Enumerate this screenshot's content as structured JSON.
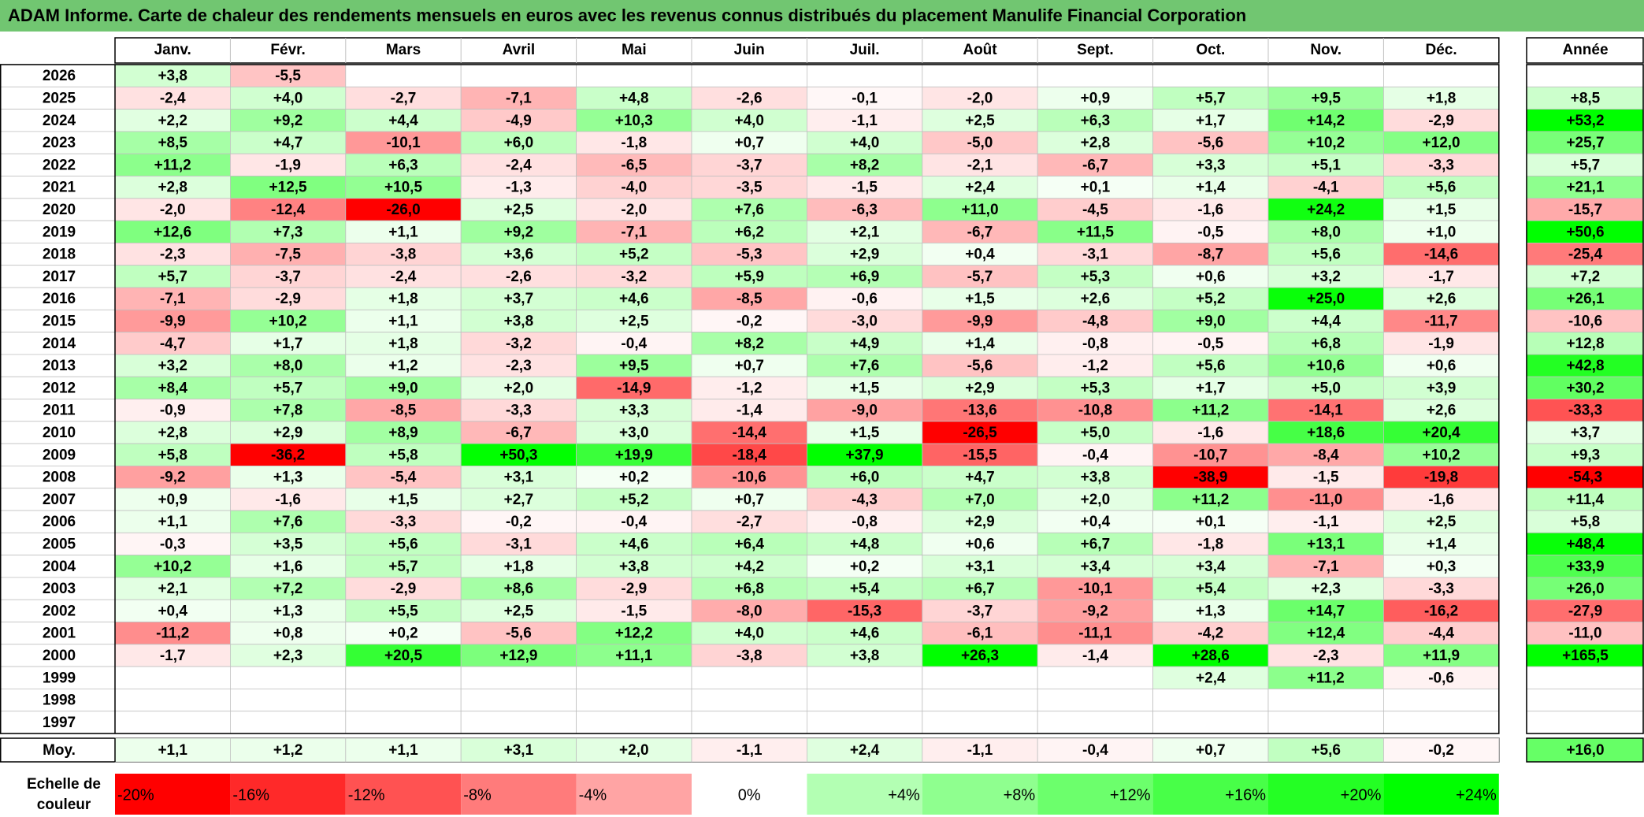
{
  "title": "ADAM Informe. Carte de chaleur des rendements mensuels en euros avec les revenus connus distribués du placement Manulife Financial Corporation",
  "chart_data": {
    "type": "heatmap",
    "months": [
      "Janv.",
      "Févr.",
      "Mars",
      "Avril",
      "Mai",
      "Juin",
      "Juil.",
      "Août",
      "Sept.",
      "Oct.",
      "Nov.",
      "Déc."
    ],
    "year_header": "Année",
    "years": [
      "2026",
      "2025",
      "2024",
      "2023",
      "2022",
      "2021",
      "2020",
      "2019",
      "2018",
      "2017",
      "2016",
      "2015",
      "2014",
      "2013",
      "2012",
      "2011",
      "2010",
      "2009",
      "2008",
      "2007",
      "2006",
      "2005",
      "2004",
      "2003",
      "2002",
      "2001",
      "2000",
      "1999",
      "1998",
      "1997"
    ],
    "values": [
      [
        "+3,8",
        "-5,5",
        "",
        "",
        "",
        "",
        "",
        "",
        "",
        "",
        "",
        ""
      ],
      [
        "-2,4",
        "+4,0",
        "-2,7",
        "-7,1",
        "+4,8",
        "-2,6",
        "-0,1",
        "-2,0",
        "+0,9",
        "+5,7",
        "+9,5",
        "+1,8"
      ],
      [
        "+2,2",
        "+9,2",
        "+4,4",
        "-4,9",
        "+10,3",
        "+4,0",
        "-1,1",
        "+2,5",
        "+6,3",
        "+1,7",
        "+14,2",
        "-2,9"
      ],
      [
        "+8,5",
        "+4,7",
        "-10,1",
        "+6,0",
        "-1,8",
        "+0,7",
        "+4,0",
        "-5,0",
        "+2,8",
        "-5,6",
        "+10,2",
        "+12,0"
      ],
      [
        "+11,2",
        "-1,9",
        "+6,3",
        "-2,4",
        "-6,5",
        "-3,7",
        "+8,2",
        "-2,1",
        "-6,7",
        "+3,3",
        "+5,1",
        "-3,3"
      ],
      [
        "+2,8",
        "+12,5",
        "+10,5",
        "-1,3",
        "-4,0",
        "-3,5",
        "-1,5",
        "+2,4",
        "+0,1",
        "+1,4",
        "-4,1",
        "+5,6"
      ],
      [
        "-2,0",
        "-12,4",
        "-26,0",
        "+2,5",
        "-2,0",
        "+7,6",
        "-6,3",
        "+11,0",
        "-4,5",
        "-1,6",
        "+24,2",
        "+1,5"
      ],
      [
        "+12,6",
        "+7,3",
        "+1,1",
        "+9,2",
        "-7,1",
        "+6,2",
        "+2,1",
        "-6,7",
        "+11,5",
        "-0,5",
        "+8,0",
        "+1,0"
      ],
      [
        "-2,3",
        "-7,5",
        "-3,8",
        "+3,6",
        "+5,2",
        "-5,3",
        "+2,9",
        "+0,4",
        "-3,1",
        "-8,7",
        "+5,6",
        "-14,6"
      ],
      [
        "+5,7",
        "-3,7",
        "-2,4",
        "-2,6",
        "-3,2",
        "+5,9",
        "+6,9",
        "-5,7",
        "+5,3",
        "+0,6",
        "+3,2",
        "-1,7"
      ],
      [
        "-7,1",
        "-2,9",
        "+1,8",
        "+3,7",
        "+4,6",
        "-8,5",
        "-0,6",
        "+1,5",
        "+2,6",
        "+5,2",
        "+25,0",
        "+2,6"
      ],
      [
        "-9,9",
        "+10,2",
        "+1,1",
        "+3,8",
        "+2,5",
        "-0,2",
        "-3,0",
        "-9,9",
        "-4,8",
        "+9,0",
        "+4,4",
        "-11,7"
      ],
      [
        "-4,7",
        "+1,7",
        "+1,8",
        "-3,2",
        "-0,4",
        "+8,2",
        "+4,9",
        "+1,4",
        "-0,8",
        "-0,5",
        "+6,8",
        "-1,9"
      ],
      [
        "+3,2",
        "+8,0",
        "+1,2",
        "-2,3",
        "+9,5",
        "+0,7",
        "+7,6",
        "-5,6",
        "-1,2",
        "+5,6",
        "+10,6",
        "+0,6"
      ],
      [
        "+8,4",
        "+5,7",
        "+9,0",
        "+2,0",
        "-14,9",
        "-1,2",
        "+1,5",
        "+2,9",
        "+5,3",
        "+1,7",
        "+5,0",
        "+3,9"
      ],
      [
        "-0,9",
        "+7,8",
        "-8,5",
        "-3,3",
        "+3,3",
        "-1,4",
        "-9,0",
        "-13,6",
        "-10,8",
        "+11,2",
        "-14,1",
        "+2,6"
      ],
      [
        "+2,8",
        "+2,9",
        "+8,9",
        "-6,7",
        "+3,0",
        "-14,4",
        "+1,5",
        "-26,5",
        "+5,0",
        "-1,6",
        "+18,6",
        "+20,4"
      ],
      [
        "+5,8",
        "-36,2",
        "+5,8",
        "+50,3",
        "+19,9",
        "-18,4",
        "+37,9",
        "-15,5",
        "-0,4",
        "-10,7",
        "-8,4",
        "+10,2"
      ],
      [
        "-9,2",
        "+1,3",
        "-5,4",
        "+3,1",
        "+0,2",
        "-10,6",
        "+6,0",
        "+4,7",
        "+3,8",
        "-38,9",
        "-1,5",
        "-19,8"
      ],
      [
        "+0,9",
        "-1,6",
        "+1,5",
        "+2,7",
        "+5,2",
        "+0,7",
        "-4,3",
        "+7,0",
        "+2,0",
        "+11,2",
        "-11,0",
        "-1,6"
      ],
      [
        "+1,1",
        "+7,6",
        "-3,3",
        "-0,2",
        "-0,4",
        "-2,7",
        "-0,8",
        "+2,9",
        "+0,4",
        "+0,1",
        "-1,1",
        "+2,5"
      ],
      [
        "-0,3",
        "+3,5",
        "+5,6",
        "-3,1",
        "+4,6",
        "+6,4",
        "+4,8",
        "+0,6",
        "+6,7",
        "-1,8",
        "+13,1",
        "+1,4"
      ],
      [
        "+10,2",
        "+1,6",
        "+5,7",
        "+1,8",
        "+3,8",
        "+4,2",
        "+0,2",
        "+3,1",
        "+3,4",
        "+3,4",
        "-7,1",
        "+0,3"
      ],
      [
        "+2,1",
        "+7,2",
        "-2,9",
        "+8,6",
        "-2,9",
        "+6,8",
        "+5,4",
        "+6,7",
        "-10,1",
        "+5,4",
        "+2,3",
        "-3,3"
      ],
      [
        "+0,4",
        "+1,3",
        "+5,5",
        "+2,5",
        "-1,5",
        "-8,0",
        "-15,3",
        "-3,7",
        "-9,2",
        "+1,3",
        "+14,7",
        "-16,2"
      ],
      [
        "-11,2",
        "+0,8",
        "+0,2",
        "-5,6",
        "+12,2",
        "+4,0",
        "+4,6",
        "-6,1",
        "-11,1",
        "-4,2",
        "+12,4",
        "-4,4"
      ],
      [
        "-1,7",
        "+2,3",
        "+20,5",
        "+12,9",
        "+11,1",
        "-3,8",
        "+3,8",
        "+26,3",
        "-1,4",
        "+28,6",
        "-2,3",
        "+11,9"
      ],
      [
        "",
        "",
        "",
        "",
        "",
        "",
        "",
        "",
        "",
        "+2,4",
        "+11,2",
        "-0,6"
      ],
      [
        "",
        "",
        "",
        "",
        "",
        "",
        "",
        "",
        "",
        "",
        "",
        ""
      ],
      [
        "",
        "",
        "",
        "",
        "",
        "",
        "",
        "",
        "",
        "",
        "",
        ""
      ]
    ],
    "annual": [
      "+8,5",
      "+53,2",
      "+25,7",
      "+5,7",
      "+21,1",
      "-15,7",
      "+50,6",
      "-25,4",
      "+7,2",
      "+26,1",
      "-10,6",
      "+12,8",
      "+42,8",
      "+30,2",
      "-33,3",
      "+3,7",
      "+9,3",
      "-54,3",
      "+11,4",
      "+5,8",
      "+48,4",
      "+33,9",
      "+26,0",
      "-27,9",
      "-11,0",
      "+165,5",
      "",
      "",
      ""
    ],
    "annual_start_index": 1,
    "avg_label": "Moy.",
    "avg_values": [
      "+1,1",
      "+1,2",
      "+1,1",
      "+3,1",
      "+2,0",
      "-1,1",
      "+2,4",
      "-1,1",
      "-0,4",
      "+0,7",
      "+5,6",
      "-0,2"
    ],
    "avg_annual": "+16,0",
    "scale_label_line1": "Echelle de",
    "scale_label_line2": "couleur",
    "scale": [
      "-20%",
      "-16%",
      "-12%",
      "-8%",
      "-4%",
      "0%",
      "+4%",
      "+8%",
      "+12%",
      "+16%",
      "+20%",
      "+24%"
    ],
    "colors": {
      "title_bg": "#71c671",
      "neg_max": "#ff0000",
      "neutral": "#ffffff",
      "pos_max": "#00ff00",
      "grid": "#c0c0c0"
    }
  }
}
